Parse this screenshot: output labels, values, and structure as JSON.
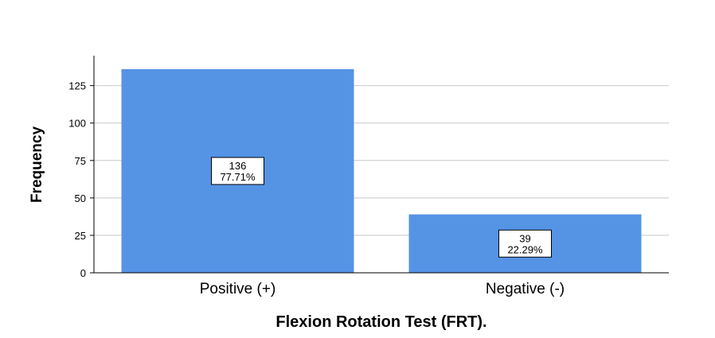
{
  "chart_data": {
    "type": "bar",
    "categories": [
      "Positive (+)",
      "Negative (-)"
    ],
    "values": [
      136,
      39
    ],
    "percent_labels": [
      "77.71%",
      "22.29%"
    ],
    "count_labels": [
      "136",
      "39"
    ],
    "title": "",
    "xlabel": "Flexion Rotation Test (FRT).",
    "ylabel": "Frequency",
    "ylim": [
      0,
      145
    ],
    "yticks": [
      0,
      25,
      50,
      75,
      100,
      125
    ],
    "grid": true,
    "bar_color": "#5593e5",
    "grid_color": "#c8c8c8"
  }
}
